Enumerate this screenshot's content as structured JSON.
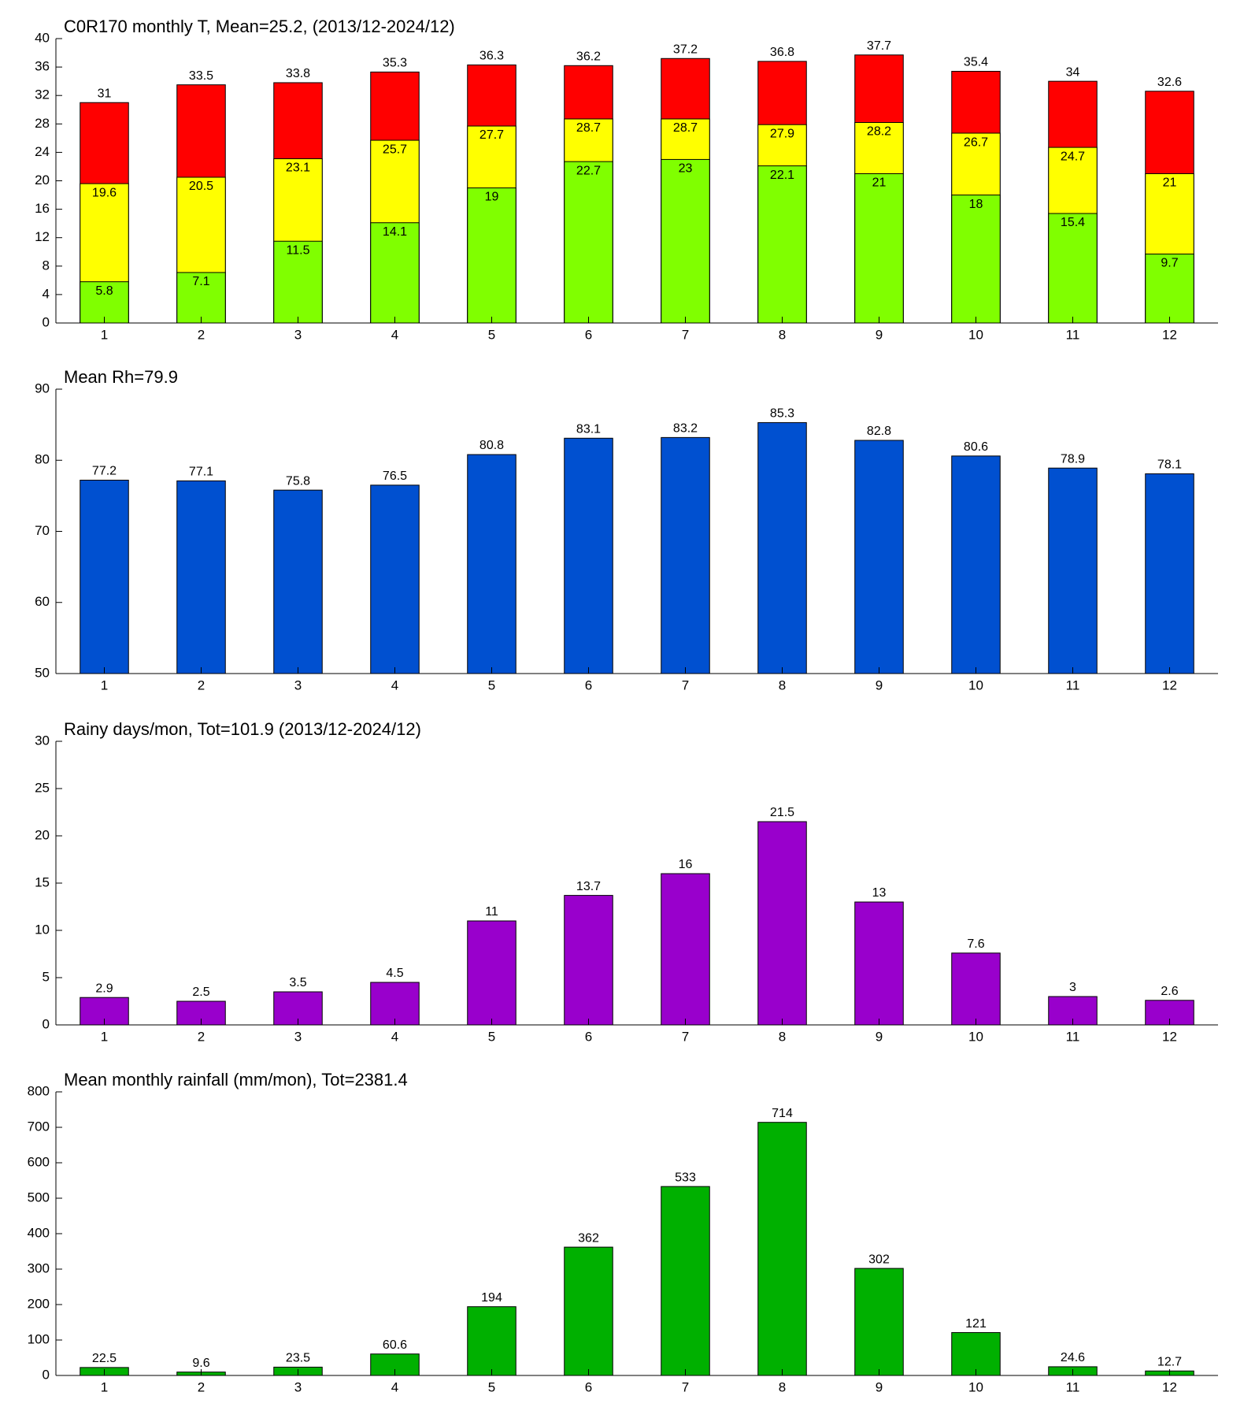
{
  "chart_data": [
    {
      "type": "bar",
      "title": "C0R170 monthly T, Mean=25.2, (2013/12-2024/12)",
      "categories": [
        1,
        2,
        3,
        4,
        5,
        6,
        7,
        8,
        9,
        10,
        11,
        12
      ],
      "series": [
        {
          "color": "#ff0000",
          "values": [
            31,
            33.5,
            33.8,
            35.3,
            36.3,
            36.2,
            37.2,
            36.8,
            37.7,
            35.4,
            34,
            32.6
          ]
        },
        {
          "color": "#ffff00",
          "values": [
            19.6,
            20.5,
            23.1,
            25.7,
            27.7,
            28.7,
            28.7,
            27.9,
            28.2,
            26.7,
            24.7,
            21
          ]
        },
        {
          "color": "#80ff00",
          "values": [
            5.8,
            7.1,
            11.5,
            14.1,
            19,
            22.7,
            23,
            22.1,
            21,
            18,
            15.4,
            9.7
          ]
        }
      ],
      "ylim": [
        0,
        40
      ],
      "yticks": [
        0,
        4,
        8,
        12,
        16,
        20,
        24,
        28,
        32,
        36,
        40
      ]
    },
    {
      "type": "bar",
      "title": "Mean Rh=79.9",
      "categories": [
        1,
        2,
        3,
        4,
        5,
        6,
        7,
        8,
        9,
        10,
        11,
        12
      ],
      "series": [
        {
          "color": "#0050d0",
          "values": [
            77.2,
            77.1,
            75.8,
            76.5,
            80.8,
            83.1,
            83.2,
            85.3,
            82.8,
            80.6,
            78.9,
            78.1
          ]
        }
      ],
      "ylim": [
        50,
        90
      ],
      "yticks": [
        50,
        60,
        70,
        80,
        90
      ]
    },
    {
      "type": "bar",
      "title": "Rainy days/mon, Tot=101.9 (2013/12-2024/12)",
      "categories": [
        1,
        2,
        3,
        4,
        5,
        6,
        7,
        8,
        9,
        10,
        11,
        12
      ],
      "series": [
        {
          "color": "#9900cc",
          "values": [
            2.9,
            2.5,
            3.5,
            4.5,
            11,
            13.7,
            16,
            21.5,
            13,
            7.6,
            3,
            2.6
          ]
        }
      ],
      "ylim": [
        0,
        30
      ],
      "yticks": [
        0,
        5,
        10,
        15,
        20,
        25,
        30
      ]
    },
    {
      "type": "bar",
      "title": "Mean monthly rainfall (mm/mon), Tot=2381.4",
      "categories": [
        1,
        2,
        3,
        4,
        5,
        6,
        7,
        8,
        9,
        10,
        11,
        12
      ],
      "series": [
        {
          "color": "#00b000",
          "values": [
            22.5,
            9.6,
            23.5,
            60.6,
            194,
            362,
            533,
            714,
            302,
            121,
            24.6,
            12.7
          ]
        }
      ],
      "ylim": [
        0,
        800
      ],
      "yticks": [
        0,
        100,
        200,
        300,
        400,
        500,
        600,
        700,
        800
      ]
    }
  ]
}
